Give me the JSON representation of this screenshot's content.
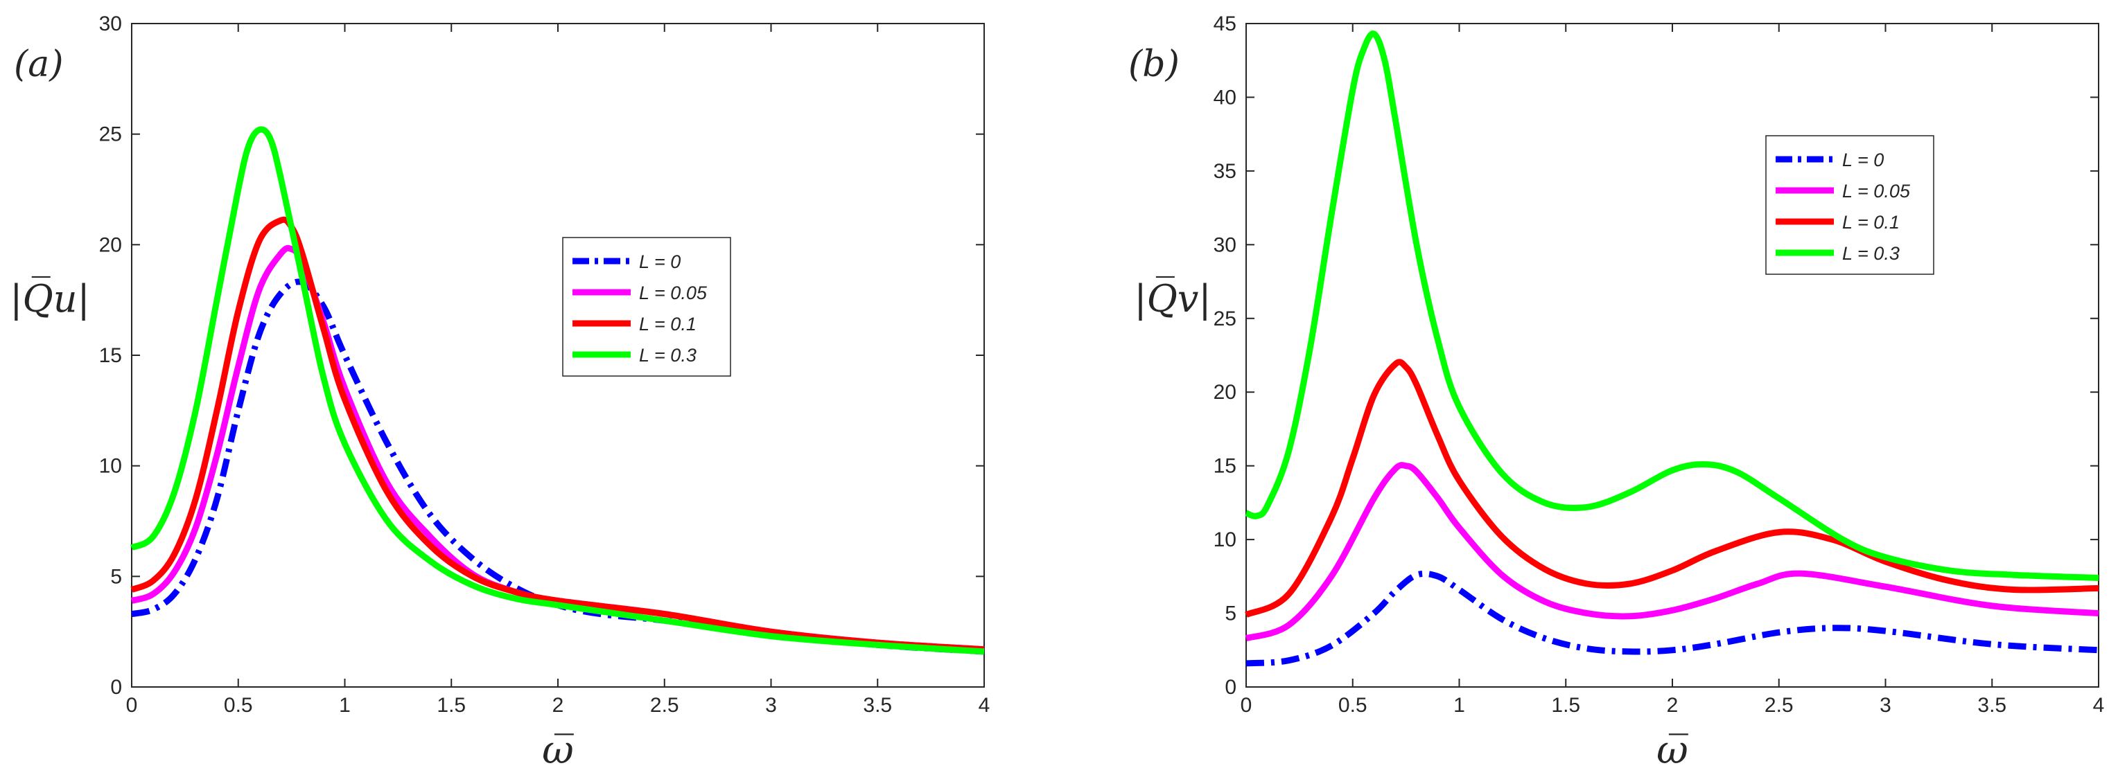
{
  "chart_data": [
    {
      "type": "line",
      "panel_label": "(a)",
      "ylabel": "|Q̅u|",
      "xlabel": "ω̅",
      "xlim": [
        0,
        4
      ],
      "ylim": [
        0,
        30
      ],
      "xticks": [
        "0",
        "0.5",
        "1",
        "1.5",
        "2",
        "2.5",
        "3",
        "3.5",
        "4"
      ],
      "yticks": [
        "0",
        "5",
        "10",
        "15",
        "20",
        "25",
        "30"
      ],
      "legend_position": "center-right",
      "series": [
        {
          "name": "L = 0",
          "color": "#0000ff",
          "style": "dashdot",
          "x": [
            0,
            0.1,
            0.2,
            0.3,
            0.4,
            0.5,
            0.6,
            0.7,
            0.8,
            0.9,
            1.0,
            1.2,
            1.4,
            1.6,
            1.8,
            2.0,
            2.2,
            2.5,
            3.0,
            3.5,
            4.0
          ],
          "y": [
            3.3,
            3.5,
            4.2,
            5.8,
            8.5,
            12.5,
            16.0,
            17.8,
            18.3,
            17.2,
            15.0,
            11.0,
            7.8,
            5.8,
            4.5,
            3.7,
            3.3,
            3.0,
            2.4,
            1.9,
            1.6
          ]
        },
        {
          "name": "L = 0.05",
          "color": "#ff00ff",
          "style": "solid",
          "x": [
            0,
            0.1,
            0.2,
            0.3,
            0.4,
            0.5,
            0.6,
            0.7,
            0.75,
            0.8,
            0.9,
            1.0,
            1.2,
            1.4,
            1.6,
            1.8,
            2.0,
            2.5,
            3.0,
            3.5,
            4.0
          ],
          "y": [
            3.9,
            4.2,
            5.2,
            7.2,
            10.5,
            14.5,
            18.0,
            19.6,
            19.8,
            19.2,
            16.5,
            13.5,
            9.2,
            6.8,
            5.1,
            4.3,
            3.9,
            3.3,
            2.5,
            2.0,
            1.7
          ]
        },
        {
          "name": "L = 0.1",
          "color": "#ff0000",
          "style": "solid",
          "x": [
            0,
            0.1,
            0.2,
            0.3,
            0.4,
            0.5,
            0.6,
            0.7,
            0.75,
            0.8,
            0.9,
            1.0,
            1.2,
            1.4,
            1.6,
            1.8,
            2.0,
            2.5,
            3.0,
            3.5,
            4.0
          ],
          "y": [
            4.4,
            4.8,
            6.0,
            8.5,
            12.5,
            17.0,
            20.2,
            21.1,
            20.8,
            19.6,
            16.2,
            13.0,
            8.8,
            6.4,
            5.0,
            4.3,
            3.9,
            3.3,
            2.5,
            2.0,
            1.7
          ]
        },
        {
          "name": "L = 0.3",
          "color": "#00ff00",
          "style": "solid",
          "x": [
            0,
            0.1,
            0.2,
            0.3,
            0.4,
            0.5,
            0.55,
            0.6,
            0.65,
            0.7,
            0.8,
            0.9,
            1.0,
            1.2,
            1.4,
            1.6,
            1.8,
            2.0,
            2.5,
            3.0,
            3.5,
            4.0
          ],
          "y": [
            6.3,
            6.8,
            8.8,
            12.5,
            17.5,
            22.5,
            24.5,
            25.2,
            24.8,
            23.0,
            18.5,
            14.0,
            11.0,
            7.5,
            5.7,
            4.6,
            4.0,
            3.7,
            3.0,
            2.3,
            1.9,
            1.6
          ]
        }
      ]
    },
    {
      "type": "line",
      "panel_label": "(b)",
      "ylabel": "|Q̅v|",
      "xlabel": "ω̅",
      "xlim": [
        0,
        4
      ],
      "ylim": [
        0,
        45
      ],
      "xticks": [
        "0",
        "0.5",
        "1",
        "1.5",
        "2",
        "2.5",
        "3",
        "3.5",
        "4"
      ],
      "yticks": [
        "0",
        "5",
        "10",
        "15",
        "20",
        "25",
        "30",
        "35",
        "40",
        "45"
      ],
      "legend_position": "top-right",
      "series": [
        {
          "name": "L = 0",
          "color": "#0000ff",
          "style": "dashdot",
          "x": [
            0,
            0.2,
            0.4,
            0.6,
            0.7,
            0.8,
            0.9,
            1.0,
            1.2,
            1.4,
            1.6,
            1.8,
            2.0,
            2.2,
            2.5,
            2.75,
            3.0,
            3.5,
            4.0
          ],
          "y": [
            1.6,
            1.8,
            2.8,
            5.0,
            6.5,
            7.6,
            7.5,
            6.6,
            4.6,
            3.3,
            2.6,
            2.4,
            2.5,
            2.9,
            3.7,
            4.0,
            3.8,
            2.9,
            2.5
          ]
        },
        {
          "name": "L = 0.05",
          "color": "#ff00ff",
          "style": "solid",
          "x": [
            0,
            0.2,
            0.4,
            0.6,
            0.7,
            0.75,
            0.8,
            0.9,
            1.0,
            1.2,
            1.4,
            1.6,
            1.8,
            2.0,
            2.2,
            2.4,
            2.6,
            3.0,
            3.5,
            4.0
          ],
          "y": [
            3.3,
            4.2,
            7.5,
            12.8,
            14.8,
            15.0,
            14.6,
            12.8,
            10.8,
            7.6,
            5.8,
            5.0,
            4.8,
            5.2,
            6.0,
            7.0,
            7.7,
            6.8,
            5.5,
            5.0
          ]
        },
        {
          "name": "L = 0.1",
          "color": "#ff0000",
          "style": "solid",
          "x": [
            0,
            0.2,
            0.4,
            0.5,
            0.6,
            0.7,
            0.75,
            0.8,
            0.9,
            1.0,
            1.2,
            1.4,
            1.6,
            1.8,
            2.0,
            2.2,
            2.5,
            2.75,
            3.0,
            3.3,
            3.6,
            4.0
          ],
          "y": [
            4.9,
            6.3,
            11.5,
            15.5,
            19.8,
            21.9,
            21.7,
            20.5,
            17.0,
            14.0,
            10.2,
            8.0,
            7.0,
            7.0,
            7.9,
            9.2,
            10.5,
            10.0,
            8.5,
            7.2,
            6.6,
            6.7
          ]
        },
        {
          "name": "L = 0.3",
          "color": "#00ff00",
          "style": "solid",
          "x": [
            0,
            0.05,
            0.1,
            0.2,
            0.3,
            0.4,
            0.5,
            0.55,
            0.6,
            0.65,
            0.7,
            0.8,
            0.9,
            1.0,
            1.2,
            1.4,
            1.6,
            1.8,
            2.0,
            2.15,
            2.3,
            2.5,
            2.8,
            3.0,
            3.3,
            3.6,
            4.0
          ],
          "y": [
            11.8,
            11.6,
            12.3,
            16.0,
            23.0,
            32.0,
            40.5,
            43.2,
            44.3,
            42.5,
            38.5,
            30.0,
            23.5,
            19.0,
            14.5,
            12.5,
            12.2,
            13.2,
            14.7,
            15.1,
            14.6,
            12.8,
            10.0,
            8.8,
            7.9,
            7.6,
            7.4
          ]
        }
      ]
    }
  ]
}
